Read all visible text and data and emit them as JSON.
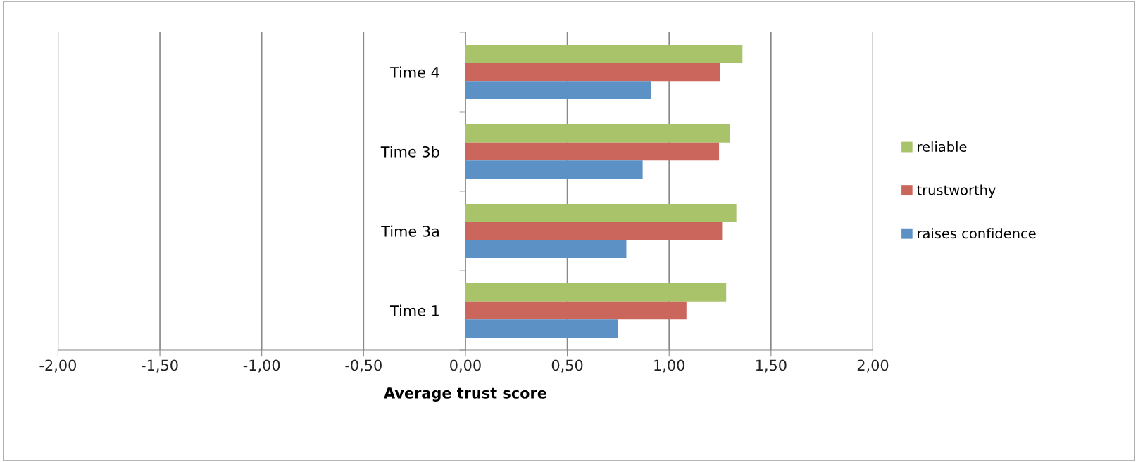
{
  "chart_data": {
    "type": "bar",
    "orientation": "horizontal",
    "xlabel": "Average trust score",
    "categories": [
      "Time 4",
      "Time 3b",
      "Time 3a",
      "Time 1"
    ],
    "series": [
      {
        "name": "reliable",
        "color": "#a9c36b",
        "values": [
          1.36,
          1.3,
          1.33,
          1.28
        ]
      },
      {
        "name": "trustworthy",
        "color": "#cb665d",
        "values": [
          1.25,
          1.245,
          1.26,
          1.085
        ]
      },
      {
        "name": "raises confidence",
        "color": "#5b91c5",
        "values": [
          0.91,
          0.87,
          0.79,
          0.75
        ]
      }
    ],
    "xlim": [
      -2,
      2
    ],
    "xticks": [
      {
        "value": -2,
        "label": "-2,00"
      },
      {
        "value": -1.5,
        "label": "-1,50"
      },
      {
        "value": -1,
        "label": "-1,00"
      },
      {
        "value": -0.5,
        "label": "-0,50"
      },
      {
        "value": 0,
        "label": "0,00"
      },
      {
        "value": 0.5,
        "label": "0,50"
      },
      {
        "value": 1,
        "label": "1,00"
      },
      {
        "value": 1.5,
        "label": "1,50"
      },
      {
        "value": 2,
        "label": "2,00"
      }
    ],
    "grid": "x",
    "legend": "right"
  }
}
